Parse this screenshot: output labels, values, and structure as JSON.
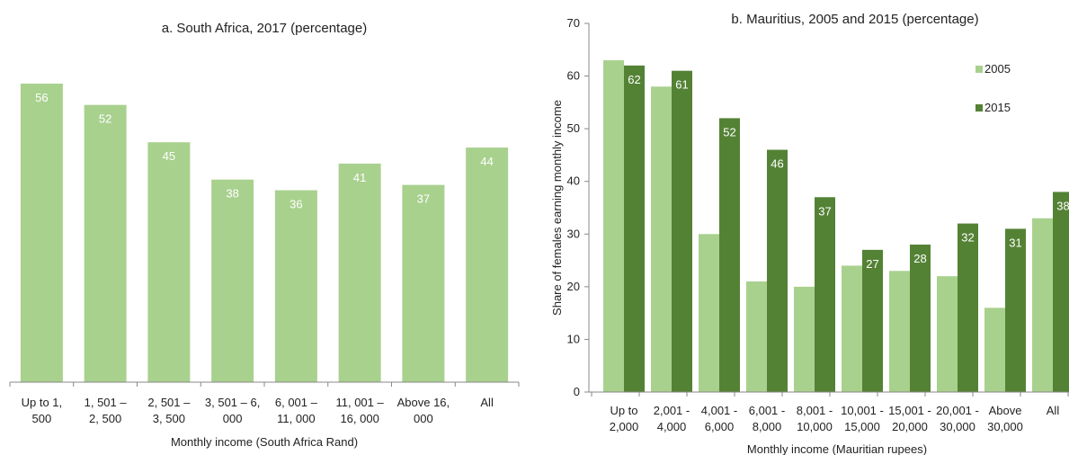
{
  "colors": {
    "light_green": "#a9d18e",
    "dark_green": "#548235",
    "axis": "#888888",
    "label_on_bar": "#ffffff"
  },
  "chart_data": [
    {
      "type": "bar",
      "title": "a. South Africa, 2017 (percentage)",
      "xlabel": "Monthly income (South Africa Rand)",
      "ylabel": "",
      "categories": [
        [
          "Up to 1,",
          "500"
        ],
        [
          "1, 501 –",
          "2, 500"
        ],
        [
          "2, 501 –",
          "3, 500"
        ],
        [
          "3, 501 – 6,",
          "000"
        ],
        [
          "6, 001 –",
          "11, 000"
        ],
        [
          "11, 001 –",
          "16, 000"
        ],
        [
          "Above 16,",
          "000"
        ],
        [
          "All"
        ]
      ],
      "values": [
        56,
        52,
        45,
        38,
        36,
        41,
        37,
        44
      ],
      "ylim": [
        0,
        60
      ],
      "grid": false,
      "legend": "none"
    },
    {
      "type": "bar",
      "title": "b. Mauritius, 2005 and 2015 (percentage)",
      "xlabel": "Monthly income (Mauritian rupees)",
      "ylabel": "Share of females earning monthly income",
      "categories": [
        [
          "Up to",
          "2,000"
        ],
        [
          "2,001 -",
          "4,000"
        ],
        [
          "4,001 -",
          "6,000"
        ],
        [
          "6,001 -",
          "8,000"
        ],
        [
          "8,001 -",
          "10,000"
        ],
        [
          "10,001 -",
          "15,000"
        ],
        [
          "15,001 -",
          "20,000"
        ],
        [
          "20,001 -",
          "30,000"
        ],
        [
          "Above",
          "30,000"
        ],
        [
          "All"
        ]
      ],
      "series": [
        {
          "name": "2005",
          "values": [
            63,
            58,
            30,
            21,
            20,
            24,
            23,
            22,
            16,
            33
          ],
          "labels": [
            "",
            "",
            "",
            "",
            "",
            "",
            "",
            "",
            "",
            ""
          ]
        },
        {
          "name": "2015",
          "values": [
            62,
            61,
            52,
            46,
            37,
            27,
            28,
            32,
            31,
            38
          ],
          "labels": [
            "62",
            "61",
            "52",
            "46",
            "37",
            "27",
            "28",
            "32",
            "31",
            "38"
          ]
        }
      ],
      "yticks": [
        0,
        10,
        20,
        30,
        40,
        50,
        60,
        70
      ],
      "ylim": [
        0,
        70
      ],
      "grid": false,
      "legend": "right"
    }
  ]
}
